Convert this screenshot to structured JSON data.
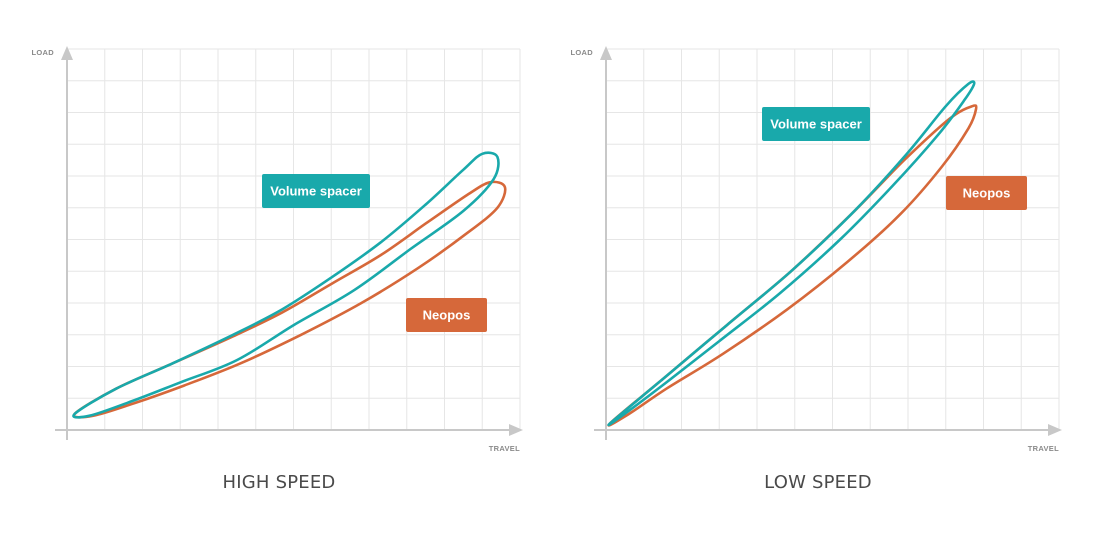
{
  "colors": {
    "volume_spacer": "#19a9ab",
    "neopos": "#d6683a",
    "grid": "#e6e6e6",
    "axis": "#c8c8c8",
    "caption": "#4a4a4a"
  },
  "chart_data": [
    {
      "type": "line",
      "title": "HIGH SPEED",
      "xlabel": "TRAVEL",
      "ylabel": "LOAD",
      "xlim": [
        0,
        12
      ],
      "ylim": [
        0,
        12
      ],
      "grid": true,
      "series": [
        {
          "name": "Volume spacer",
          "color_key": "volume_spacer",
          "x": [
            0.2,
            1.3,
            2.8,
            4.4,
            5.7,
            7.0,
            8.3,
            9.5,
            10.5,
            11.0,
            11.4,
            11.3,
            10.5,
            9.1,
            7.6,
            6.0,
            4.5,
            3.0,
            1.7,
            0.6,
            0.2
          ],
          "y": [
            0.5,
            1.3,
            2.1,
            3.0,
            3.8,
            4.8,
            5.9,
            7.1,
            8.2,
            8.7,
            8.6,
            7.9,
            6.9,
            5.7,
            4.4,
            3.3,
            2.2,
            1.5,
            0.9,
            0.45,
            0.5
          ]
        },
        {
          "name": "Neopos",
          "color_key": "neopos",
          "x": [
            0.2,
            1.3,
            2.8,
            4.4,
            5.7,
            7.0,
            8.3,
            9.5,
            10.6,
            11.2,
            11.6,
            11.4,
            10.6,
            9.3,
            7.8,
            6.2,
            4.6,
            3.1,
            1.8,
            0.7,
            0.2
          ],
          "y": [
            0.5,
            1.3,
            2.1,
            2.95,
            3.7,
            4.6,
            5.5,
            6.5,
            7.4,
            7.8,
            7.65,
            7.0,
            6.2,
            5.1,
            4.0,
            3.0,
            2.1,
            1.4,
            0.85,
            0.45,
            0.5
          ]
        }
      ],
      "tags": [
        {
          "text": "Volume spacer",
          "color_key": "volume_spacer"
        },
        {
          "text": "Neopos",
          "color_key": "neopos"
        }
      ]
    },
    {
      "type": "line",
      "title": "LOW SPEED",
      "xlabel": "TRAVEL",
      "ylabel": "LOAD",
      "xlim": [
        0,
        12
      ],
      "ylim": [
        0,
        12
      ],
      "grid": true,
      "series": [
        {
          "name": "Volume spacer",
          "color_key": "volume_spacer",
          "x": [
            0.1,
            1.5,
            3.2,
            4.9,
            6.5,
            7.9,
            9.0,
            9.6,
            9.75,
            9.5,
            8.8,
            7.6,
            6.2,
            4.6,
            3.0,
            1.6,
            0.6,
            0.1
          ],
          "y": [
            0.2,
            1.6,
            3.3,
            5.0,
            6.8,
            8.6,
            10.2,
            10.9,
            10.9,
            10.4,
            9.3,
            7.7,
            6.0,
            4.3,
            2.8,
            1.5,
            0.6,
            0.2
          ]
        },
        {
          "name": "Neopos",
          "color_key": "neopos",
          "x": [
            0.1,
            1.5,
            3.2,
            4.9,
            6.5,
            7.9,
            9.1,
            9.7,
            9.8,
            9.6,
            8.9,
            7.8,
            6.4,
            4.8,
            3.1,
            1.6,
            0.6,
            0.1
          ],
          "y": [
            0.2,
            1.6,
            3.3,
            5.0,
            6.8,
            8.5,
            9.8,
            10.2,
            10.1,
            9.5,
            8.3,
            6.8,
            5.3,
            3.8,
            2.4,
            1.3,
            0.5,
            0.2
          ]
        }
      ],
      "tags": [
        {
          "text": "Volume spacer",
          "color_key": "volume_spacer"
        },
        {
          "text": "Neopos",
          "color_key": "neopos"
        }
      ]
    }
  ]
}
